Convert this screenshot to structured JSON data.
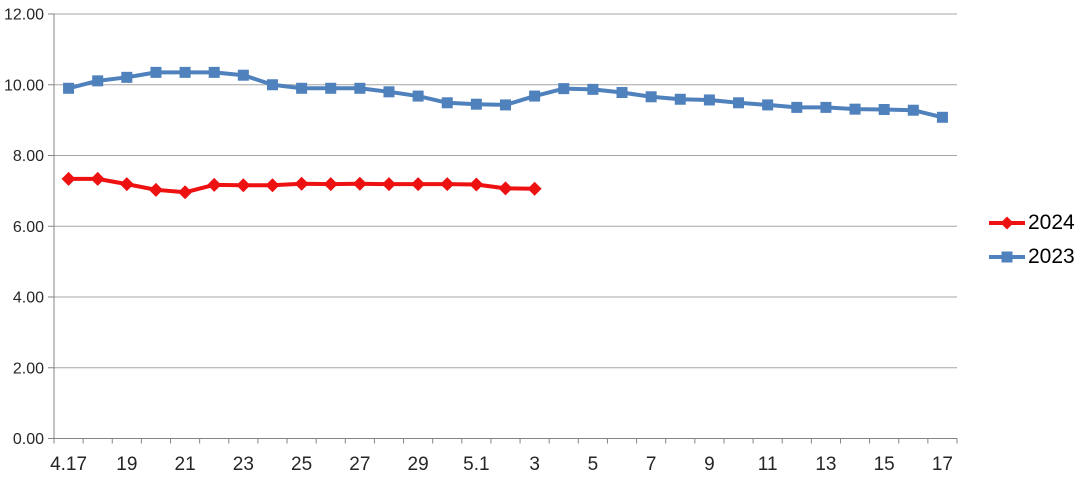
{
  "chart_data": {
    "type": "line",
    "title": "",
    "xlabel": "",
    "ylabel": "",
    "ylim": [
      0,
      12
    ],
    "y_tick_step": 2,
    "y_tick_labels": [
      "0.00",
      "2.00",
      "4.00",
      "6.00",
      "8.00",
      "10.00",
      "12.00"
    ],
    "x_slots": 31,
    "x_tick_label_every": 2,
    "x_tick_labels": [
      "4.17",
      "19",
      "21",
      "23",
      "25",
      "27",
      "29",
      "5.1",
      "3",
      "5",
      "7",
      "9",
      "11",
      "13",
      "15",
      "17"
    ],
    "grid": "horizontal",
    "legend_position": "right",
    "series": [
      {
        "name": "2024",
        "color": "#EE1111",
        "marker": "diamond",
        "values": [
          7.34,
          7.34,
          7.19,
          7.03,
          6.96,
          7.17,
          7.16,
          7.16,
          7.2,
          7.19,
          7.2,
          7.19,
          7.19,
          7.19,
          7.18,
          7.07,
          7.06
        ]
      },
      {
        "name": "2023",
        "color": "#4F81BD",
        "marker": "square",
        "values": [
          9.9,
          10.11,
          10.21,
          10.35,
          10.35,
          10.35,
          10.27,
          10.0,
          9.9,
          9.9,
          9.9,
          9.8,
          9.68,
          9.49,
          9.45,
          9.43,
          9.68,
          9.89,
          9.87,
          9.78,
          9.66,
          9.59,
          9.57,
          9.49,
          9.43,
          9.36,
          9.36,
          9.31,
          9.3,
          9.28,
          9.08
        ]
      }
    ],
    "axis_color": "#848484",
    "gridline_color": "#a6a6a6",
    "tick_label_color": "#262626"
  },
  "legend": {
    "items": [
      {
        "label": "2024"
      },
      {
        "label": "2023"
      }
    ]
  }
}
